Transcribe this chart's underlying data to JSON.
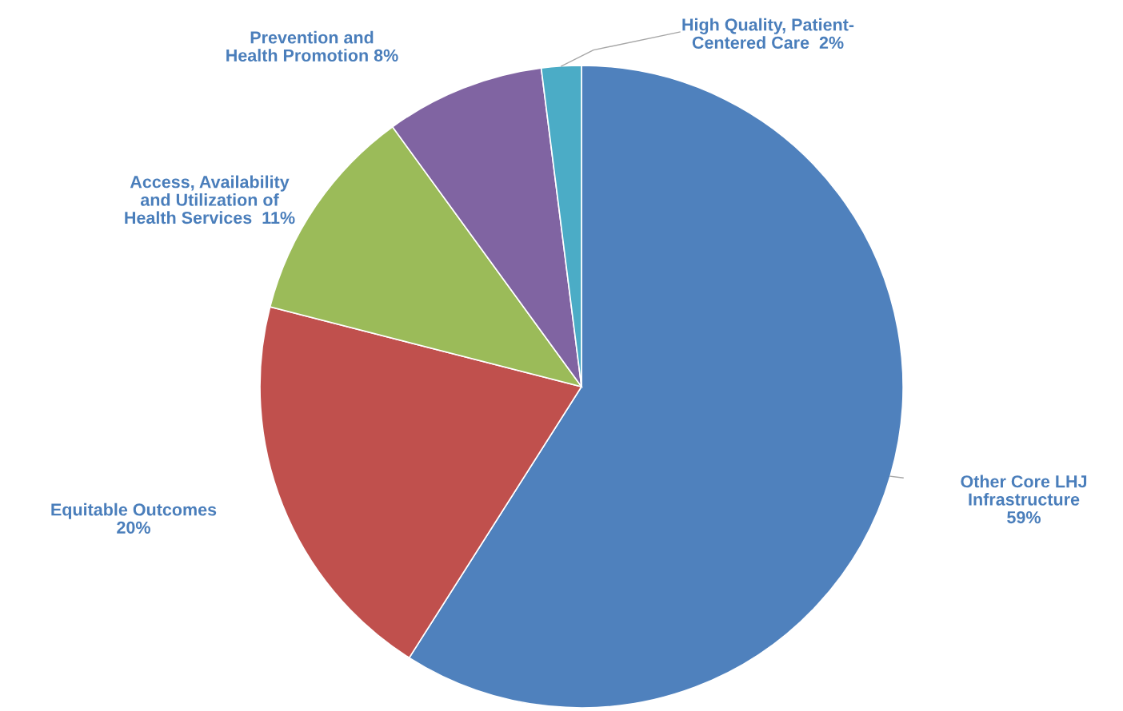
{
  "chart_data": {
    "type": "pie",
    "categories": [
      "Other Core LHJ\nInfrastructure",
      "Equitable Outcomes",
      "Access, Availability\nand Utilization of\nHealth Services",
      "Prevention and\nHealth Promotion",
      "High Quality, Patient-\nCentered Care"
    ],
    "values": [
      59,
      20,
      11,
      8,
      2
    ],
    "value_labels": [
      "59%",
      "20%",
      "11%",
      "8%",
      "2%"
    ],
    "colors": [
      "#4f81bd",
      "#c0504d",
      "#9bbb59",
      "#8064a2",
      "#4bacc6"
    ]
  }
}
